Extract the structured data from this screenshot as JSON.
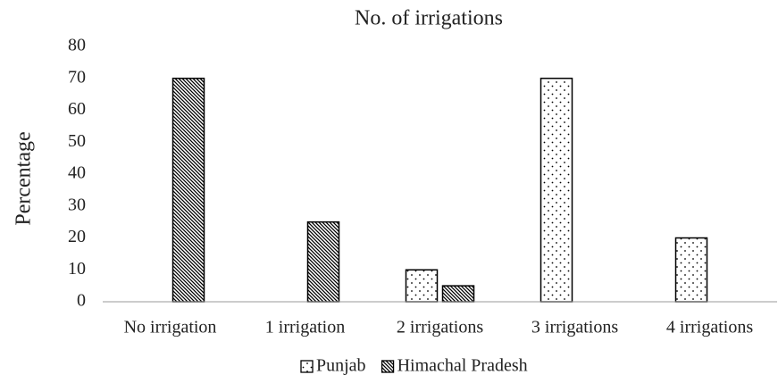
{
  "chart_data": {
    "type": "bar",
    "title": "No. of irrigations",
    "y_label": "Percentage",
    "categories": [
      "No irrigation",
      "1 irrigation",
      "2 irrigations",
      "3 irrigations",
      "4 irrigations"
    ],
    "series": [
      {
        "name": "Punjab",
        "color": "#000000",
        "pattern": "dots",
        "values": [
          0,
          0,
          10,
          70,
          20
        ]
      },
      {
        "name": "Himachal Pradesh",
        "color": "#000000",
        "pattern": "diagonal",
        "values": [
          70,
          25,
          5,
          0,
          0
        ]
      }
    ],
    "ylim": [
      0,
      80
    ],
    "yticks": [
      0,
      10,
      20,
      30,
      40,
      50,
      60,
      70,
      80
    ],
    "grid": false,
    "legend": "bottom"
  }
}
